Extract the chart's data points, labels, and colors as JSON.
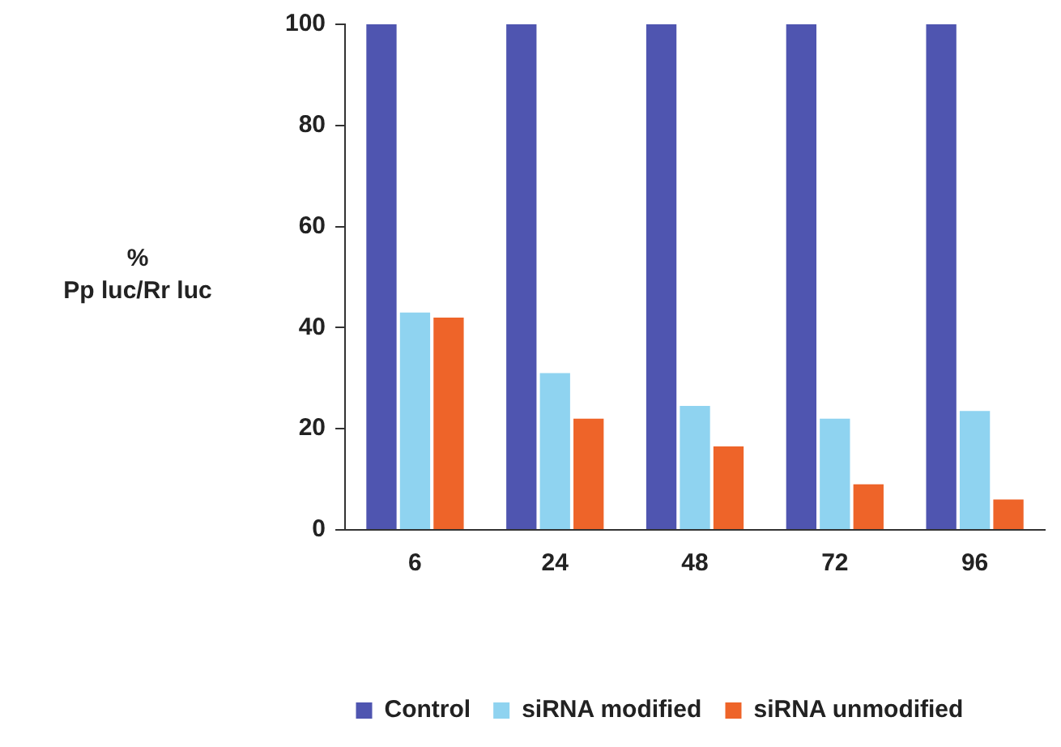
{
  "chart_data": {
    "type": "bar",
    "ylabel": "%\nPp luc/Rr luc",
    "categories": [
      "6",
      "24",
      "48",
      "72",
      "96"
    ],
    "series": [
      {
        "name": "Control",
        "color": "#4f55b0",
        "values": [
          100,
          100,
          100,
          100,
          100
        ]
      },
      {
        "name": "siRNA modified",
        "color": "#8fd3f0",
        "values": [
          43,
          31,
          24.5,
          22,
          23.5
        ]
      },
      {
        "name": "siRNA unmodified",
        "color": "#ee6429",
        "values": [
          42,
          22,
          16.5,
          9,
          6
        ]
      }
    ],
    "ylim": [
      0,
      100
    ],
    "yticks": [
      0,
      20,
      40,
      60,
      80,
      100
    ],
    "grid": false,
    "legend": "bottom"
  }
}
